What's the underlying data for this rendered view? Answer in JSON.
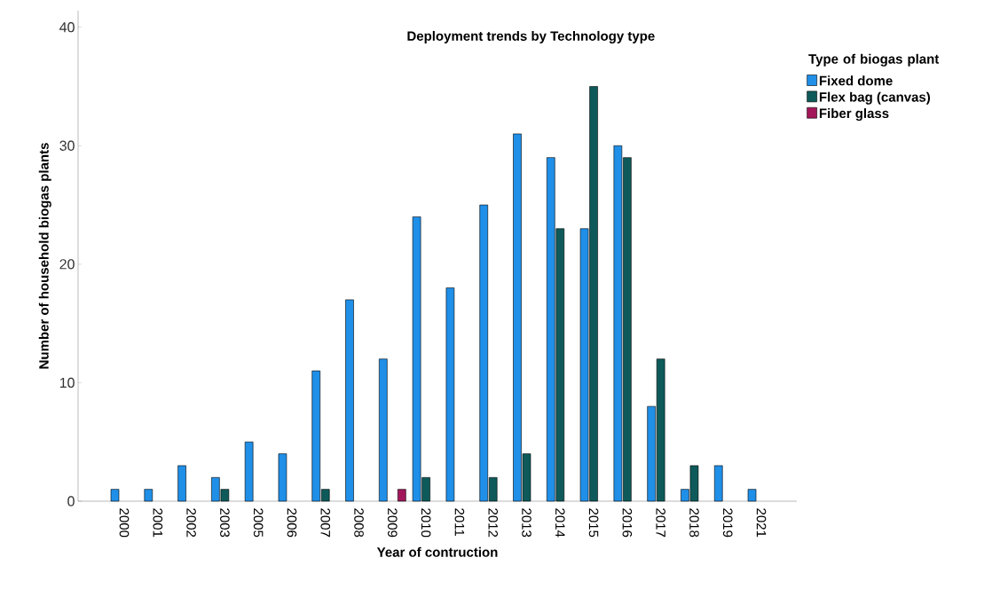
{
  "chart_data": {
    "type": "bar",
    "title": "Deployment trends by Technology type",
    "xlabel": "Year of contruction",
    "ylabel": "Number of household biogas plants",
    "legend_title": "Type of biogas plant",
    "categories": [
      "2000",
      "2001",
      "2002",
      "2003",
      "2005",
      "2006",
      "2007",
      "2008",
      "2009",
      "2010",
      "2011",
      "2012",
      "2013",
      "2014",
      "2015",
      "2016",
      "2017",
      "2018",
      "2019",
      "2021"
    ],
    "series": [
      {
        "name": "Fixed dome",
        "color": "#1f8fe8",
        "values": [
          1,
          1,
          3,
          2,
          5,
          4,
          11,
          17,
          12,
          24,
          18,
          25,
          31,
          29,
          23,
          30,
          8,
          1,
          3,
          1
        ]
      },
      {
        "name": "Flex bag (canvas)",
        "color": "#0e5a5a",
        "values": [
          null,
          null,
          null,
          1,
          null,
          null,
          1,
          null,
          null,
          2,
          null,
          2,
          4,
          23,
          35,
          29,
          12,
          3,
          null,
          null
        ]
      },
      {
        "name": "Fiber glass",
        "color": "#a3175a",
        "values": [
          null,
          null,
          null,
          null,
          null,
          null,
          null,
          null,
          1,
          null,
          null,
          null,
          null,
          null,
          null,
          null,
          null,
          null,
          null,
          null
        ]
      }
    ],
    "ylim": [
      0,
      41.4
    ],
    "yticks": [
      0,
      10,
      20,
      30,
      40
    ],
    "grid": false,
    "legend": "top right"
  }
}
